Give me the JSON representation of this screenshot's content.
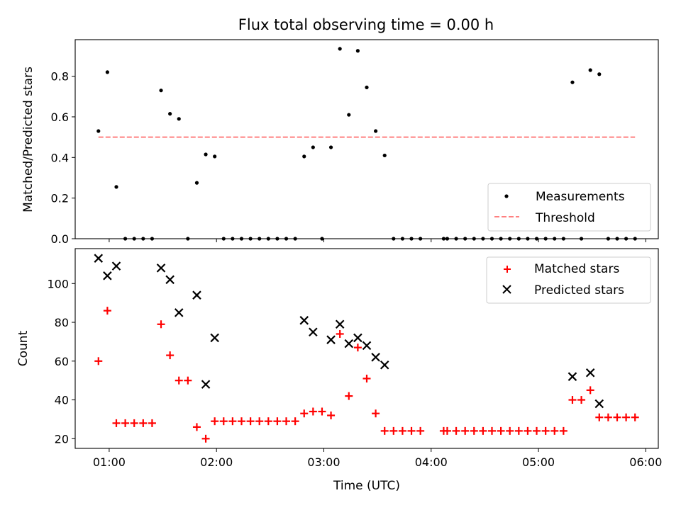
{
  "chart_data": [
    {
      "type": "scatter",
      "title": "Flux total observing time = 0.00 h",
      "xlabel": "",
      "ylabel": "Matched/Predicted stars",
      "xlim": [
        "00:41",
        "06:07"
      ],
      "ylim": [
        0,
        0.98
      ],
      "y_ticks": [
        0.0,
        0.2,
        0.4,
        0.6,
        0.8
      ],
      "y_tick_labels": [
        "0.0",
        "0.2",
        "0.4",
        "0.6",
        "0.8"
      ],
      "legend_position": "lower right",
      "grid": false,
      "series": [
        {
          "name": "Measurements",
          "kind": "points",
          "color": "#000000",
          "x": [
            "00:54",
            "00:59",
            "01:04",
            "01:09",
            "01:14",
            "01:19",
            "01:24",
            "01:29",
            "01:34",
            "01:39",
            "01:44",
            "01:49",
            "01:54",
            "01:59",
            "02:04",
            "02:09",
            "02:14",
            "02:19",
            "02:24",
            "02:29",
            "02:34",
            "02:39",
            "02:44",
            "02:49",
            "02:54",
            "02:59",
            "03:04",
            "03:09",
            "03:14",
            "03:19",
            "03:24",
            "03:29",
            "03:34",
            "03:39",
            "03:44",
            "03:49",
            "03:54",
            "04:07",
            "04:09",
            "04:14",
            "04:19",
            "04:24",
            "04:29",
            "04:34",
            "04:39",
            "04:44",
            "04:49",
            "04:54",
            "04:59",
            "05:04",
            "05:09",
            "05:14",
            "05:19",
            "05:24",
            "05:29",
            "05:34",
            "05:39",
            "05:44",
            "05:49",
            "05:54"
          ],
          "y": [
            0.53,
            0.82,
            0.255,
            0,
            0,
            0,
            0,
            0.73,
            0.615,
            0.59,
            0,
            0.275,
            0.415,
            0.405,
            0,
            0,
            0,
            0,
            0,
            0,
            0,
            0,
            0,
            0.405,
            0.45,
            0,
            0.45,
            0.935,
            0.61,
            0.925,
            0.745,
            0.53,
            0.41,
            0,
            0,
            0,
            0,
            0,
            0,
            0,
            0,
            0,
            0,
            0,
            0,
            0,
            0,
            0,
            0,
            0,
            0,
            0,
            0.77,
            0,
            0.83,
            0.81,
            0,
            0,
            0,
            0
          ]
        },
        {
          "name": "Threshold",
          "kind": "line",
          "style": "dashed",
          "color": "#ff8080",
          "x": [
            "00:54",
            "05:54"
          ],
          "y": [
            0.5,
            0.5
          ]
        }
      ]
    },
    {
      "type": "scatter",
      "title": "",
      "xlabel": "Time (UTC)",
      "ylabel": "Count",
      "xlim": [
        "00:41",
        "06:07"
      ],
      "ylim": [
        15,
        118
      ],
      "y_ticks": [
        20,
        40,
        60,
        80,
        100
      ],
      "y_tick_labels": [
        "20",
        "40",
        "60",
        "80",
        "100"
      ],
      "x_ticks": [
        "01:00",
        "02:00",
        "03:00",
        "04:00",
        "05:00",
        "06:00"
      ],
      "x_tick_labels": [
        "01:00",
        "02:00",
        "03:00",
        "04:00",
        "05:00",
        "06:00"
      ],
      "legend_position": "upper right",
      "grid": false,
      "series": [
        {
          "name": "Matched stars",
          "marker": "plus",
          "color": "#ff0000",
          "x": [
            "00:54",
            "00:59",
            "01:04",
            "01:09",
            "01:14",
            "01:19",
            "01:24",
            "01:29",
            "01:34",
            "01:39",
            "01:44",
            "01:49",
            "01:54",
            "01:59",
            "02:04",
            "02:09",
            "02:14",
            "02:19",
            "02:24",
            "02:29",
            "02:34",
            "02:39",
            "02:44",
            "02:49",
            "02:54",
            "02:59",
            "03:04",
            "03:09",
            "03:14",
            "03:19",
            "03:24",
            "03:29",
            "03:34",
            "03:39",
            "03:44",
            "03:49",
            "03:54",
            "04:07",
            "04:09",
            "04:14",
            "04:19",
            "04:24",
            "04:29",
            "04:34",
            "04:39",
            "04:44",
            "04:49",
            "04:54",
            "04:59",
            "05:04",
            "05:09",
            "05:14",
            "05:19",
            "05:24",
            "05:29",
            "05:34",
            "05:39",
            "05:44",
            "05:49",
            "05:54"
          ],
          "y": [
            60,
            86,
            28,
            28,
            28,
            28,
            28,
            79,
            63,
            50,
            50,
            26,
            20,
            29,
            29,
            29,
            29,
            29,
            29,
            29,
            29,
            29,
            29,
            33,
            34,
            34,
            32,
            74,
            42,
            67,
            51,
            33,
            24,
            24,
            24,
            24,
            24,
            24,
            24,
            24,
            24,
            24,
            24,
            24,
            24,
            24,
            24,
            24,
            24,
            24,
            24,
            24,
            40,
            40,
            45,
            31,
            31,
            31,
            31,
            31
          ]
        },
        {
          "name": "Predicted stars",
          "marker": "x",
          "color": "#000000",
          "x": [
            "00:54",
            "00:59",
            "01:04",
            "01:29",
            "01:34",
            "01:39",
            "01:49",
            "01:54",
            "01:59",
            "02:49",
            "02:54",
            "03:04",
            "03:09",
            "03:14",
            "03:19",
            "03:24",
            "03:29",
            "03:34",
            "05:19",
            "05:29",
            "05:34"
          ],
          "y": [
            113,
            104,
            109,
            108,
            102,
            85,
            94,
            48,
            72,
            81,
            75,
            71,
            79,
            69,
            72,
            68,
            62,
            58,
            52,
            54,
            38
          ]
        }
      ]
    }
  ]
}
